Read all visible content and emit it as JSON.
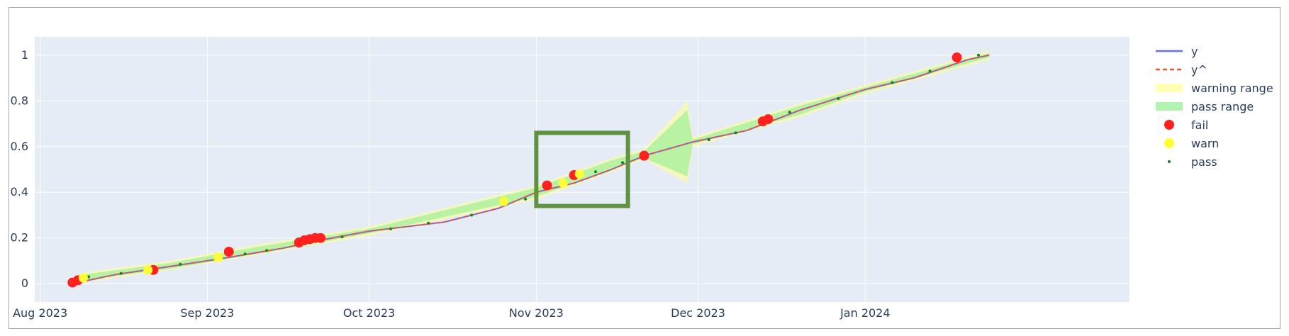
{
  "chart_data": {
    "type": "line",
    "title": "",
    "xlabel": "",
    "ylabel": "",
    "x_axis": {
      "type": "date",
      "range": [
        "2023-07-31",
        "2024-02-19"
      ],
      "tick_values": [
        "2023-08-01",
        "2023-09-01",
        "2023-10-01",
        "2023-11-01",
        "2023-12-01",
        "2024-01-01"
      ],
      "tick_labels": [
        "Aug 2023",
        "Sep 2023",
        "Oct 2023",
        "Nov 2023",
        "Dec 2023",
        "Jan 2024"
      ]
    },
    "y_axis": {
      "range": [
        -0.08,
        1.08
      ],
      "tick_values": [
        0,
        0.2,
        0.4,
        0.6,
        0.8,
        1
      ],
      "tick_labels": [
        "0",
        "0.2",
        "0.4",
        "0.6",
        "0.8",
        "1"
      ]
    },
    "grid": true,
    "legend_position": "top-right",
    "series": [
      {
        "name": "y",
        "kind": "line",
        "color": "#636efa",
        "points": [
          [
            "2023-08-07",
            0.0
          ],
          [
            "2023-08-15",
            0.04
          ],
          [
            "2023-08-25",
            0.075
          ],
          [
            "2023-09-05",
            0.115
          ],
          [
            "2023-09-15",
            0.155
          ],
          [
            "2023-09-22",
            0.19
          ],
          [
            "2023-10-01",
            0.23
          ],
          [
            "2023-10-15",
            0.27
          ],
          [
            "2023-10-25",
            0.33
          ],
          [
            "2023-11-01",
            0.4
          ],
          [
            "2023-11-08",
            0.44
          ],
          [
            "2023-11-15",
            0.5
          ],
          [
            "2023-11-21",
            0.56
          ],
          [
            "2023-11-30",
            0.62
          ],
          [
            "2023-12-10",
            0.67
          ],
          [
            "2023-12-20",
            0.76
          ],
          [
            "2024-01-01",
            0.85
          ],
          [
            "2024-01-10",
            0.9
          ],
          [
            "2024-01-20",
            0.98
          ],
          [
            "2024-01-24",
            1.0
          ]
        ]
      },
      {
        "name": "y^",
        "kind": "dashed-line",
        "color": "#ef553b",
        "points": [
          [
            "2023-08-07",
            0.0
          ],
          [
            "2023-08-15",
            0.04
          ],
          [
            "2023-08-25",
            0.075
          ],
          [
            "2023-09-05",
            0.115
          ],
          [
            "2023-09-15",
            0.155
          ],
          [
            "2023-09-22",
            0.19
          ],
          [
            "2023-10-01",
            0.23
          ],
          [
            "2023-10-15",
            0.27
          ],
          [
            "2023-10-25",
            0.33
          ],
          [
            "2023-11-01",
            0.4
          ],
          [
            "2023-11-08",
            0.44
          ],
          [
            "2023-11-15",
            0.5
          ],
          [
            "2023-11-21",
            0.56
          ],
          [
            "2023-11-30",
            0.62
          ],
          [
            "2023-12-10",
            0.67
          ],
          [
            "2023-12-20",
            0.76
          ],
          [
            "2024-01-01",
            0.85
          ],
          [
            "2024-01-10",
            0.9
          ],
          [
            "2024-01-20",
            0.98
          ],
          [
            "2024-01-24",
            1.0
          ]
        ]
      },
      {
        "name": "warning range",
        "kind": "band",
        "color": "#ffff99",
        "points": [
          [
            "2023-08-09",
            0.005,
            0.05
          ],
          [
            "2023-08-25",
            0.06,
            0.1
          ],
          [
            "2023-09-10",
            0.125,
            0.17
          ],
          [
            "2023-10-01",
            0.21,
            0.25
          ],
          [
            "2023-11-01",
            0.37,
            0.43
          ],
          [
            "2023-11-15",
            0.49,
            0.55
          ],
          [
            "2023-11-21",
            0.545,
            0.59
          ],
          [
            "2023-11-29",
            0.44,
            0.8
          ],
          [
            "2023-11-30",
            0.6,
            0.64
          ],
          [
            "2023-12-20",
            0.73,
            0.79
          ],
          [
            "2024-01-01",
            0.83,
            0.87
          ],
          [
            "2024-01-24",
            0.98,
            1.02
          ]
        ]
      },
      {
        "name": "pass range",
        "kind": "band",
        "color": "#90ee90",
        "points": [
          [
            "2023-08-09",
            0.015,
            0.04
          ],
          [
            "2023-08-25",
            0.065,
            0.09
          ],
          [
            "2023-09-10",
            0.13,
            0.16
          ],
          [
            "2023-10-01",
            0.22,
            0.24
          ],
          [
            "2023-11-01",
            0.38,
            0.42
          ],
          [
            "2023-11-15",
            0.5,
            0.54
          ],
          [
            "2023-11-21",
            0.55,
            0.58
          ],
          [
            "2023-11-29",
            0.47,
            0.76
          ],
          [
            "2023-11-30",
            0.61,
            0.63
          ],
          [
            "2023-12-20",
            0.74,
            0.78
          ],
          [
            "2024-01-01",
            0.84,
            0.86
          ],
          [
            "2024-01-24",
            0.99,
            1.01
          ]
        ]
      },
      {
        "name": "fail",
        "kind": "markers",
        "color": "#ff2020",
        "points": [
          [
            "2023-08-07",
            0.005
          ],
          [
            "2023-08-08",
            0.015
          ],
          [
            "2023-08-22",
            0.06
          ],
          [
            "2023-09-05",
            0.14
          ],
          [
            "2023-09-18",
            0.18
          ],
          [
            "2023-09-19",
            0.19
          ],
          [
            "2023-09-20",
            0.195
          ],
          [
            "2023-09-21",
            0.2
          ],
          [
            "2023-09-22",
            0.2
          ],
          [
            "2023-11-03",
            0.43
          ],
          [
            "2023-11-08",
            0.475
          ],
          [
            "2023-11-21",
            0.56
          ],
          [
            "2023-12-13",
            0.71
          ],
          [
            "2023-12-14",
            0.72
          ],
          [
            "2024-01-18",
            0.99
          ]
        ]
      },
      {
        "name": "warn",
        "kind": "markers",
        "color": "#ffff33",
        "points": [
          [
            "2023-08-09",
            0.025
          ],
          [
            "2023-08-21",
            0.06
          ],
          [
            "2023-09-03",
            0.115
          ],
          [
            "2023-10-26",
            0.36
          ],
          [
            "2023-11-06",
            0.44
          ],
          [
            "2023-11-09",
            0.48
          ]
        ]
      },
      {
        "name": "pass",
        "kind": "small-markers",
        "color": "#1b7f1b",
        "points": [
          [
            "2023-08-10",
            0.03
          ],
          [
            "2023-08-16",
            0.045
          ],
          [
            "2023-08-27",
            0.085
          ],
          [
            "2023-09-08",
            0.13
          ],
          [
            "2023-09-12",
            0.145
          ],
          [
            "2023-09-26",
            0.205
          ],
          [
            "2023-10-05",
            0.24
          ],
          [
            "2023-10-12",
            0.265
          ],
          [
            "2023-10-20",
            0.3
          ],
          [
            "2023-10-30",
            0.37
          ],
          [
            "2023-11-12",
            0.49
          ],
          [
            "2023-11-17",
            0.53
          ],
          [
            "2023-12-03",
            0.63
          ],
          [
            "2023-12-08",
            0.66
          ],
          [
            "2023-12-18",
            0.75
          ],
          [
            "2023-12-27",
            0.81
          ],
          [
            "2024-01-06",
            0.88
          ],
          [
            "2024-01-13",
            0.93
          ],
          [
            "2024-01-22",
            1.0
          ]
        ]
      }
    ],
    "annotations": [
      {
        "kind": "rectangle",
        "color": "#5f9341",
        "x_range": [
          "2023-11-01",
          "2023-11-18"
        ],
        "y_range": [
          0.34,
          0.66
        ]
      }
    ]
  }
}
